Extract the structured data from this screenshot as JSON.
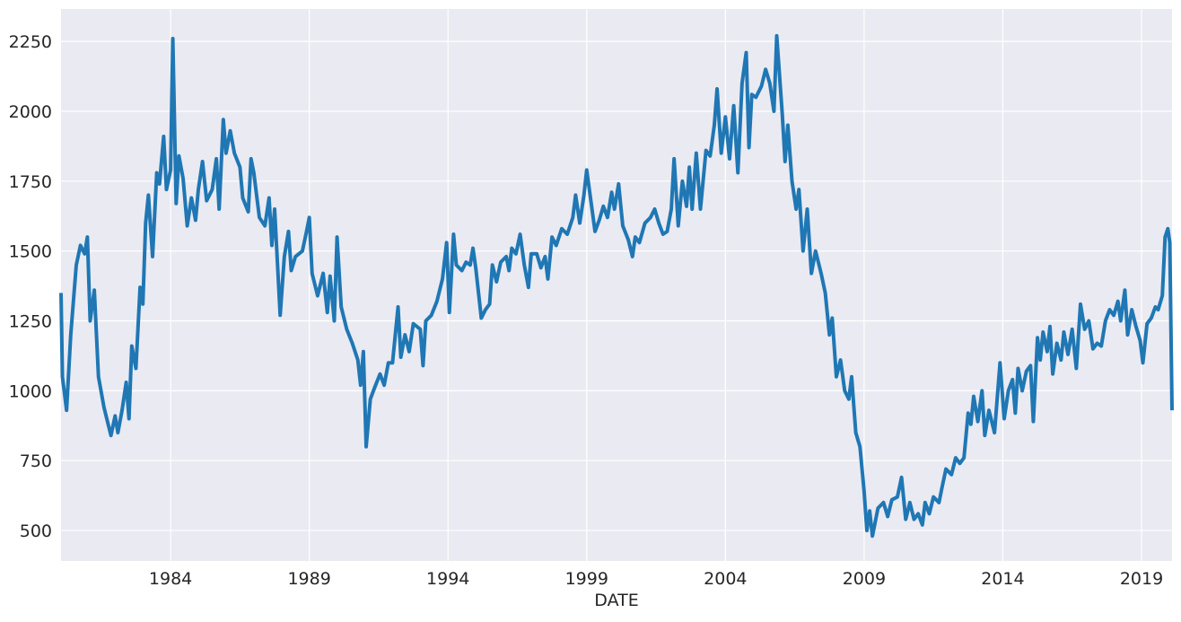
{
  "chart_data": {
    "type": "line",
    "xlabel": "DATE",
    "color": "#1f77b4",
    "grid": true,
    "xlim": [
      1980.05,
      2020.1
    ],
    "ylim": [
      391,
      2366
    ],
    "xticks": [
      1984,
      1989,
      1994,
      1999,
      2004,
      2009,
      2014,
      2019
    ],
    "yticks": [
      500,
      750,
      1000,
      1250,
      1500,
      1750,
      2000,
      2250
    ],
    "x": [
      1980.05,
      1980.1,
      1980.25,
      1980.4,
      1980.6,
      1980.75,
      1980.9,
      1981.0,
      1981.1,
      1981.25,
      1981.4,
      1981.6,
      1981.75,
      1981.85,
      1982.0,
      1982.1,
      1982.25,
      1982.4,
      1982.5,
      1982.6,
      1982.75,
      1982.9,
      1983.0,
      1983.1,
      1983.2,
      1983.35,
      1983.5,
      1983.6,
      1983.75,
      1983.85,
      1984.0,
      1984.08,
      1984.2,
      1984.3,
      1984.45,
      1984.6,
      1984.75,
      1984.9,
      1985.0,
      1985.15,
      1985.3,
      1985.5,
      1985.65,
      1985.75,
      1985.9,
      1986.0,
      1986.15,
      1986.3,
      1986.5,
      1986.6,
      1986.8,
      1986.9,
      1987.0,
      1987.2,
      1987.4,
      1987.55,
      1987.65,
      1987.75,
      1987.95,
      1988.1,
      1988.25,
      1988.35,
      1988.5,
      1988.75,
      1988.9,
      1989.0,
      1989.1,
      1989.3,
      1989.5,
      1989.65,
      1989.75,
      1989.9,
      1990.0,
      1990.15,
      1990.35,
      1990.55,
      1990.75,
      1990.85,
      1990.95,
      1991.05,
      1991.2,
      1991.35,
      1991.55,
      1991.7,
      1991.85,
      1992.0,
      1992.2,
      1992.3,
      1992.45,
      1992.6,
      1992.75,
      1993.0,
      1993.1,
      1993.2,
      1993.4,
      1993.6,
      1993.8,
      1993.95,
      1994.05,
      1994.2,
      1994.3,
      1994.5,
      1994.65,
      1994.8,
      1994.9,
      1995.0,
      1995.2,
      1995.35,
      1995.5,
      1995.6,
      1995.75,
      1995.9,
      1996.1,
      1996.2,
      1996.3,
      1996.45,
      1996.6,
      1996.75,
      1996.9,
      1997.0,
      1997.2,
      1997.35,
      1997.5,
      1997.6,
      1997.75,
      1997.9,
      1998.1,
      1998.3,
      1998.5,
      1998.6,
      1998.75,
      1998.9,
      1999.0,
      1999.15,
      1999.3,
      1999.45,
      1999.6,
      1999.75,
      1999.9,
      2000.0,
      2000.15,
      2000.3,
      2000.5,
      2000.65,
      2000.75,
      2000.9,
      2001.1,
      2001.3,
      2001.45,
      2001.6,
      2001.75,
      2001.9,
      2002.05,
      2002.15,
      2002.3,
      2002.45,
      2002.6,
      2002.7,
      2002.8,
      2002.95,
      2003.1,
      2003.3,
      2003.45,
      2003.6,
      2003.7,
      2003.85,
      2004.0,
      2004.15,
      2004.3,
      2004.45,
      2004.6,
      2004.75,
      2004.85,
      2004.95,
      2005.1,
      2005.3,
      2005.45,
      2005.6,
      2005.75,
      2005.85,
      2006.05,
      2006.15,
      2006.25,
      2006.4,
      2006.55,
      2006.65,
      2006.8,
      2006.95,
      2007.1,
      2007.25,
      2007.45,
      2007.6,
      2007.75,
      2007.85,
      2008.0,
      2008.15,
      2008.3,
      2008.45,
      2008.55,
      2008.7,
      2008.85,
      2009.0,
      2009.1,
      2009.2,
      2009.3,
      2009.5,
      2009.7,
      2009.85,
      2010.0,
      2010.2,
      2010.35,
      2010.5,
      2010.65,
      2010.8,
      2010.95,
      2011.1,
      2011.2,
      2011.35,
      2011.5,
      2011.7,
      2011.8,
      2011.95,
      2012.15,
      2012.3,
      2012.45,
      2012.6,
      2012.75,
      2012.85,
      2012.95,
      2013.1,
      2013.25,
      2013.35,
      2013.5,
      2013.7,
      2013.9,
      2014.05,
      2014.2,
      2014.35,
      2014.45,
      2014.55,
      2014.7,
      2014.85,
      2015.0,
      2015.1,
      2015.25,
      2015.35,
      2015.45,
      2015.6,
      2015.7,
      2015.8,
      2015.95,
      2016.1,
      2016.2,
      2016.35,
      2016.5,
      2016.65,
      2016.8,
      2016.95,
      2017.1,
      2017.25,
      2017.4,
      2017.55,
      2017.7,
      2017.85,
      2018.0,
      2018.15,
      2018.25,
      2018.4,
      2018.5,
      2018.65,
      2018.8,
      2018.95,
      2019.05,
      2019.2,
      2019.35,
      2019.5,
      2019.6,
      2019.75,
      2019.85,
      2019.95,
      2020.02,
      2020.1
    ],
    "values": [
      1350,
      1050,
      930,
      1200,
      1450,
      1520,
      1490,
      1550,
      1250,
      1360,
      1050,
      940,
      880,
      840,
      910,
      850,
      930,
      1030,
      900,
      1160,
      1080,
      1370,
      1310,
      1600,
      1700,
      1480,
      1780,
      1740,
      1910,
      1720,
      1790,
      2260,
      1670,
      1840,
      1760,
      1590,
      1690,
      1610,
      1720,
      1820,
      1680,
      1720,
      1830,
      1650,
      1970,
      1850,
      1930,
      1850,
      1800,
      1690,
      1640,
      1830,
      1780,
      1620,
      1590,
      1690,
      1520,
      1650,
      1270,
      1480,
      1570,
      1430,
      1480,
      1500,
      1570,
      1620,
      1420,
      1340,
      1420,
      1280,
      1410,
      1250,
      1550,
      1300,
      1220,
      1170,
      1110,
      1020,
      1140,
      800,
      970,
      1010,
      1060,
      1020,
      1100,
      1100,
      1300,
      1120,
      1200,
      1140,
      1240,
      1220,
      1090,
      1250,
      1270,
      1320,
      1400,
      1530,
      1280,
      1560,
      1450,
      1430,
      1460,
      1450,
      1510,
      1440,
      1260,
      1290,
      1310,
      1450,
      1390,
      1460,
      1480,
      1430,
      1510,
      1490,
      1560,
      1450,
      1370,
      1490,
      1490,
      1440,
      1480,
      1400,
      1550,
      1520,
      1580,
      1560,
      1620,
      1700,
      1600,
      1700,
      1790,
      1680,
      1570,
      1610,
      1660,
      1620,
      1710,
      1650,
      1740,
      1590,
      1540,
      1480,
      1550,
      1530,
      1600,
      1620,
      1650,
      1600,
      1560,
      1570,
      1650,
      1830,
      1590,
      1750,
      1660,
      1800,
      1650,
      1850,
      1650,
      1860,
      1840,
      1950,
      2080,
      1850,
      1980,
      1830,
      2020,
      1780,
      2100,
      2210,
      1870,
      2060,
      2050,
      2090,
      2150,
      2100,
      2000,
      2270,
      1990,
      1820,
      1950,
      1750,
      1650,
      1720,
      1500,
      1650,
      1420,
      1500,
      1420,
      1350,
      1200,
      1260,
      1050,
      1110,
      1000,
      970,
      1050,
      850,
      800,
      640,
      500,
      570,
      480,
      580,
      600,
      550,
      610,
      620,
      690,
      540,
      600,
      540,
      560,
      520,
      600,
      560,
      620,
      600,
      650,
      720,
      700,
      760,
      740,
      760,
      920,
      880,
      980,
      890,
      1000,
      840,
      930,
      850,
      1100,
      900,
      1000,
      1040,
      920,
      1080,
      1000,
      1070,
      1090,
      890,
      1190,
      1110,
      1210,
      1140,
      1230,
      1060,
      1170,
      1110,
      1210,
      1130,
      1220,
      1080,
      1310,
      1220,
      1250,
      1150,
      1170,
      1160,
      1250,
      1290,
      1270,
      1320,
      1250,
      1360,
      1200,
      1290,
      1230,
      1180,
      1100,
      1240,
      1260,
      1300,
      1290,
      1340,
      1550,
      1580,
      1530,
      930
    ]
  }
}
